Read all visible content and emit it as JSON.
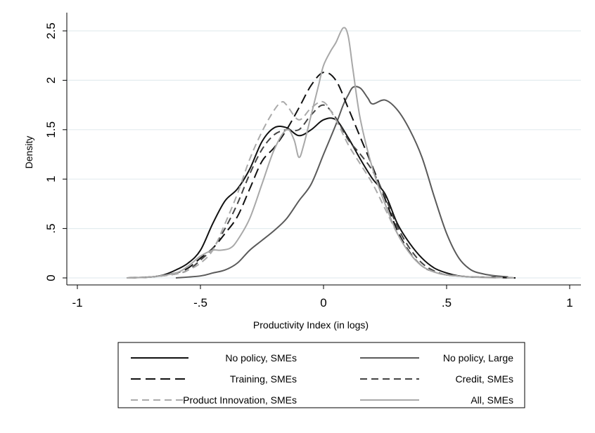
{
  "chart_data": {
    "type": "line",
    "xlabel": "Productivity Index (in logs)",
    "ylabel": "Density",
    "xlim": [
      -1,
      1
    ],
    "ylim": [
      0,
      2.5
    ],
    "xticks": [
      -1,
      -0.5,
      0,
      0.5,
      1
    ],
    "xtick_labels": [
      "-1",
      "-.5",
      "0",
      ".5",
      "1"
    ],
    "yticks": [
      0,
      0.5,
      1,
      1.5,
      2,
      2.5
    ],
    "ytick_labels": [
      "0",
      ".5",
      "1",
      "1.5",
      "2",
      "2.5"
    ],
    "grid": "horizontal",
    "legend_position": "bottom",
    "series": [
      {
        "name": "No policy, SMEs",
        "color": "#111111",
        "dash": "solid",
        "x": [
          -0.8,
          -0.7,
          -0.65,
          -0.6,
          -0.55,
          -0.5,
          -0.45,
          -0.4,
          -0.35,
          -0.3,
          -0.25,
          -0.2,
          -0.15,
          -0.1,
          -0.05,
          0,
          0.05,
          0.1,
          0.15,
          0.2,
          0.25,
          0.3,
          0.35,
          0.4,
          0.45,
          0.5,
          0.55,
          0.6,
          0.7,
          0.78
        ],
        "y": [
          0,
          0.01,
          0.03,
          0.08,
          0.15,
          0.28,
          0.55,
          0.78,
          0.9,
          1.1,
          1.38,
          1.52,
          1.52,
          1.44,
          1.5,
          1.6,
          1.6,
          1.42,
          1.2,
          1.0,
          0.85,
          0.55,
          0.35,
          0.2,
          0.1,
          0.05,
          0.02,
          0.01,
          0.005,
          0
        ]
      },
      {
        "name": "No policy, Large",
        "color": "#5a5a5a",
        "dash": "solid",
        "x": [
          -0.6,
          -0.5,
          -0.45,
          -0.4,
          -0.35,
          -0.3,
          -0.25,
          -0.2,
          -0.15,
          -0.1,
          -0.05,
          0,
          0.05,
          0.08,
          0.1,
          0.12,
          0.15,
          0.18,
          0.2,
          0.25,
          0.3,
          0.35,
          0.4,
          0.45,
          0.5,
          0.55,
          0.6,
          0.65,
          0.7,
          0.75
        ],
        "y": [
          0,
          0.02,
          0.05,
          0.08,
          0.15,
          0.28,
          0.38,
          0.48,
          0.6,
          0.78,
          0.95,
          1.25,
          1.55,
          1.75,
          1.85,
          1.93,
          1.92,
          1.82,
          1.76,
          1.8,
          1.7,
          1.5,
          1.22,
          0.82,
          0.45,
          0.2,
          0.08,
          0.04,
          0.02,
          0.01
        ]
      },
      {
        "name": "Training, SMEs",
        "color": "#111111",
        "dash": "long-dash",
        "x": [
          -0.8,
          -0.7,
          -0.6,
          -0.55,
          -0.5,
          -0.45,
          -0.4,
          -0.35,
          -0.3,
          -0.25,
          -0.2,
          -0.15,
          -0.1,
          -0.05,
          0,
          0.05,
          0.1,
          0.15,
          0.2,
          0.25,
          0.3,
          0.35,
          0.4,
          0.45,
          0.5,
          0.55,
          0.6,
          0.7,
          0.78
        ],
        "y": [
          0,
          0.01,
          0.05,
          0.1,
          0.2,
          0.3,
          0.45,
          0.62,
          0.9,
          1.18,
          1.32,
          1.5,
          1.72,
          1.95,
          2.08,
          2.0,
          1.72,
          1.42,
          1.12,
          0.8,
          0.48,
          0.26,
          0.12,
          0.06,
          0.03,
          0.02,
          0.01,
          0.005,
          0
        ]
      },
      {
        "name": "Credit, SMEs",
        "color": "#444444",
        "dash": "dash",
        "x": [
          -0.8,
          -0.7,
          -0.6,
          -0.55,
          -0.5,
          -0.45,
          -0.4,
          -0.35,
          -0.3,
          -0.25,
          -0.2,
          -0.15,
          -0.1,
          -0.05,
          0,
          0.05,
          0.1,
          0.15,
          0.2,
          0.25,
          0.3,
          0.35,
          0.4,
          0.45,
          0.5,
          0.55,
          0.6,
          0.7,
          0.78
        ],
        "y": [
          0,
          0.01,
          0.04,
          0.08,
          0.18,
          0.3,
          0.5,
          0.75,
          1.05,
          1.3,
          1.45,
          1.5,
          1.5,
          1.65,
          1.75,
          1.62,
          1.4,
          1.25,
          1.08,
          0.82,
          0.52,
          0.3,
          0.15,
          0.07,
          0.03,
          0.02,
          0.01,
          0.005,
          0
        ]
      },
      {
        "name": "Product Innovation, SMEs",
        "color": "#aaaaaa",
        "dash": "dash",
        "x": [
          -0.8,
          -0.7,
          -0.6,
          -0.55,
          -0.5,
          -0.45,
          -0.4,
          -0.35,
          -0.3,
          -0.25,
          -0.2,
          -0.17,
          -0.15,
          -0.1,
          -0.05,
          0,
          0.05,
          0.1,
          0.15,
          0.2,
          0.25,
          0.3,
          0.35,
          0.4,
          0.45,
          0.5,
          0.55,
          0.6,
          0.7,
          0.78
        ],
        "y": [
          0,
          0.01,
          0.04,
          0.08,
          0.15,
          0.28,
          0.55,
          0.85,
          1.2,
          1.48,
          1.7,
          1.78,
          1.75,
          1.6,
          1.72,
          1.78,
          1.6,
          1.35,
          1.15,
          0.95,
          0.7,
          0.45,
          0.25,
          0.12,
          0.06,
          0.03,
          0.02,
          0.01,
          0.005,
          0
        ]
      },
      {
        "name": "All, SMEs",
        "color": "#a8a8a8",
        "dash": "solid",
        "x": [
          -0.8,
          -0.7,
          -0.6,
          -0.55,
          -0.5,
          -0.45,
          -0.42,
          -0.38,
          -0.35,
          -0.3,
          -0.25,
          -0.2,
          -0.15,
          -0.12,
          -0.1,
          -0.08,
          -0.05,
          -0.02,
          0,
          0.03,
          0.05,
          0.08,
          0.1,
          0.12,
          0.15,
          0.2,
          0.25,
          0.3,
          0.35,
          0.4,
          0.45,
          0.5,
          0.6,
          0.7
        ],
        "y": [
          0,
          0.01,
          0.05,
          0.12,
          0.22,
          0.28,
          0.28,
          0.3,
          0.38,
          0.6,
          0.95,
          1.3,
          1.5,
          1.4,
          1.22,
          1.35,
          1.65,
          1.95,
          2.15,
          2.3,
          2.38,
          2.53,
          2.45,
          2.1,
          1.6,
          1.1,
          0.75,
          0.45,
          0.25,
          0.12,
          0.06,
          0.03,
          0.01,
          0
        ]
      }
    ],
    "legend": {
      "left": [
        "No policy, SMEs",
        "Training, SMEs",
        "Product Innovation, SMEs"
      ],
      "right": [
        "No policy, Large",
        "Credit, SMEs",
        "All, SMEs"
      ]
    }
  }
}
